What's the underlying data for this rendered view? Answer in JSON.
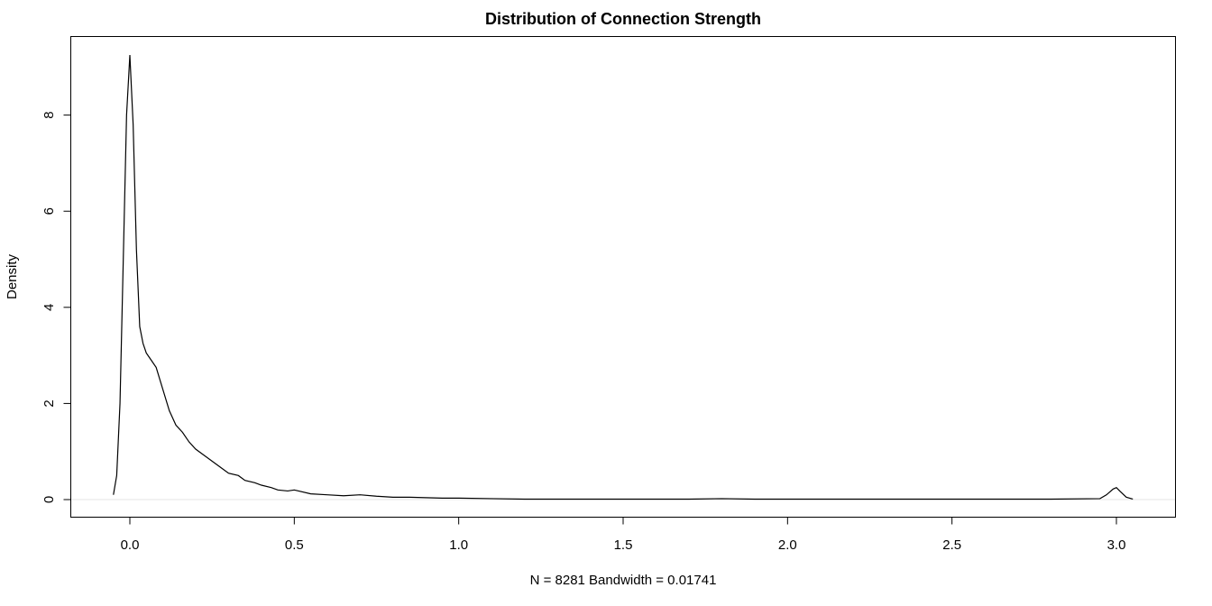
{
  "chart_data": {
    "type": "line",
    "title": "Distribution of Connection Strength",
    "xlabel": "N = 8281   Bandwidth = 0.01741",
    "ylabel": "Density",
    "xlim": [
      -0.05,
      3.05
    ],
    "ylim": [
      0,
      9.25
    ],
    "x_ticks": [
      0.0,
      0.5,
      1.0,
      1.5,
      2.0,
      2.5,
      3.0
    ],
    "x_tick_labels": [
      "0.0",
      "0.5",
      "1.0",
      "1.5",
      "2.0",
      "2.5",
      "3.0"
    ],
    "y_ticks": [
      0,
      2,
      4,
      6,
      8
    ],
    "y_tick_labels": [
      "0",
      "2",
      "4",
      "6",
      "8"
    ],
    "grid": false,
    "series": [
      {
        "x": [
          -0.05,
          -0.04,
          -0.03,
          -0.02,
          -0.01,
          0.0,
          0.01,
          0.02,
          0.03,
          0.04,
          0.05,
          0.06,
          0.08,
          0.1,
          0.12,
          0.14,
          0.16,
          0.18,
          0.2,
          0.22,
          0.25,
          0.28,
          0.3,
          0.33,
          0.35,
          0.38,
          0.4,
          0.43,
          0.45,
          0.48,
          0.5,
          0.55,
          0.6,
          0.65,
          0.7,
          0.75,
          0.8,
          0.85,
          0.9,
          0.95,
          1.0,
          1.1,
          1.2,
          1.3,
          1.5,
          1.7,
          1.8,
          1.9,
          2.0,
          2.2,
          2.4,
          2.6,
          2.8,
          2.95,
          2.97,
          2.99,
          3.0,
          3.01,
          3.03,
          3.05
        ],
        "y": [
          0.1,
          0.5,
          2.0,
          5.0,
          8.0,
          9.25,
          7.8,
          5.2,
          3.6,
          3.25,
          3.05,
          2.95,
          2.75,
          2.3,
          1.85,
          1.55,
          1.4,
          1.2,
          1.05,
          0.95,
          0.8,
          0.65,
          0.55,
          0.5,
          0.4,
          0.35,
          0.3,
          0.25,
          0.2,
          0.18,
          0.2,
          0.12,
          0.1,
          0.08,
          0.1,
          0.07,
          0.05,
          0.05,
          0.04,
          0.03,
          0.03,
          0.02,
          0.01,
          0.01,
          0.01,
          0.01,
          0.02,
          0.01,
          0.01,
          0.01,
          0.01,
          0.01,
          0.01,
          0.02,
          0.1,
          0.22,
          0.25,
          0.18,
          0.05,
          0.01
        ]
      }
    ]
  }
}
